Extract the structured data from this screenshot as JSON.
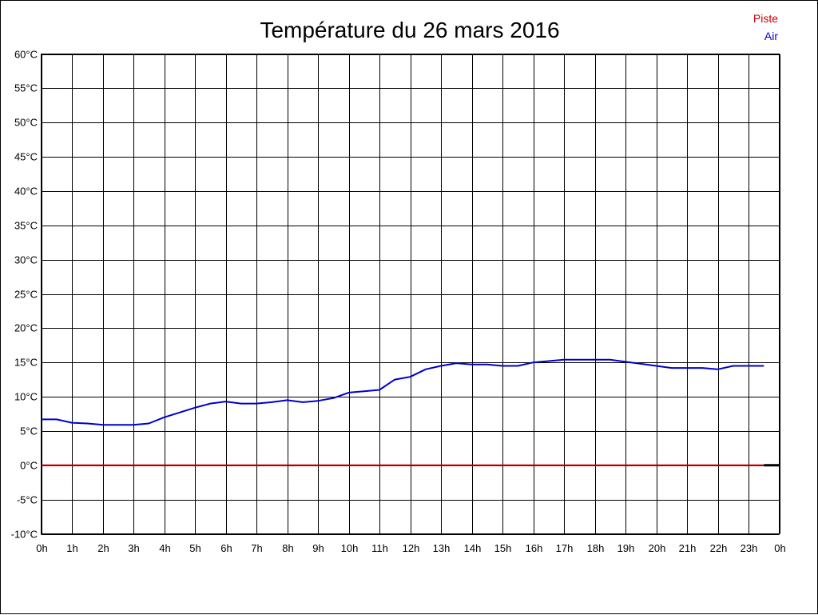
{
  "chart_data": {
    "type": "line",
    "title": "Température du 26 mars 2016",
    "xlabel": "",
    "ylabel": "",
    "xlim": [
      0,
      24
    ],
    "ylim": [
      -10,
      60
    ],
    "grid": true,
    "legend_position": "top-right",
    "y_ticks": [
      {
        "value": 60,
        "label": "60°C"
      },
      {
        "value": 55,
        "label": "55°C"
      },
      {
        "value": 50,
        "label": "50°C"
      },
      {
        "value": 45,
        "label": "45°C"
      },
      {
        "value": 40,
        "label": "40°C"
      },
      {
        "value": 35,
        "label": "35°C"
      },
      {
        "value": 30,
        "label": "30°C"
      },
      {
        "value": 25,
        "label": "25°C"
      },
      {
        "value": 20,
        "label": "20°C"
      },
      {
        "value": 15,
        "label": "15°C"
      },
      {
        "value": 10,
        "label": "10°C"
      },
      {
        "value": 5,
        "label": "5°C"
      },
      {
        "value": 0,
        "label": "0°C"
      },
      {
        "value": -5,
        "label": "-5°C"
      },
      {
        "value": -10,
        "label": "-10°C"
      }
    ],
    "x_ticks": [
      {
        "value": 0,
        "label": "0h"
      },
      {
        "value": 1,
        "label": "1h"
      },
      {
        "value": 2,
        "label": "2h"
      },
      {
        "value": 3,
        "label": "3h"
      },
      {
        "value": 4,
        "label": "4h"
      },
      {
        "value": 5,
        "label": "5h"
      },
      {
        "value": 6,
        "label": "6h"
      },
      {
        "value": 7,
        "label": "7h"
      },
      {
        "value": 8,
        "label": "8h"
      },
      {
        "value": 9,
        "label": "9h"
      },
      {
        "value": 10,
        "label": "10h"
      },
      {
        "value": 11,
        "label": "11h"
      },
      {
        "value": 12,
        "label": "12h"
      },
      {
        "value": 13,
        "label": "13h"
      },
      {
        "value": 14,
        "label": "14h"
      },
      {
        "value": 15,
        "label": "15h"
      },
      {
        "value": 16,
        "label": "16h"
      },
      {
        "value": 17,
        "label": "17h"
      },
      {
        "value": 18,
        "label": "18h"
      },
      {
        "value": 19,
        "label": "19h"
      },
      {
        "value": 20,
        "label": "20h"
      },
      {
        "value": 21,
        "label": "21h"
      },
      {
        "value": 22,
        "label": "22h"
      },
      {
        "value": 23,
        "label": "23h"
      },
      {
        "value": 24,
        "label": "0h"
      }
    ],
    "series": [
      {
        "name": "Piste",
        "color": "#cc0000",
        "x": [
          0,
          0.5,
          1,
          1.5,
          2,
          2.5,
          3,
          3.5,
          4,
          4.5,
          5,
          5.5,
          6,
          6.5,
          7,
          7.5,
          8,
          8.5,
          9,
          9.5,
          10,
          10.5,
          11,
          11.5,
          12,
          12.5,
          13,
          13.5,
          14,
          14.5,
          15,
          15.5,
          16,
          16.5,
          17,
          17.5,
          18,
          18.5,
          19,
          19.5,
          20,
          20.5,
          21,
          21.5,
          22,
          22.5,
          23,
          23.5
        ],
        "values": [
          0,
          0,
          0,
          0,
          0,
          0,
          0,
          0,
          0,
          0,
          0,
          0,
          0,
          0,
          0,
          0,
          0,
          0,
          0,
          0,
          0,
          0,
          0,
          0,
          0,
          0,
          0,
          0,
          0,
          0,
          0,
          0,
          0,
          0,
          0,
          0,
          0,
          0,
          0,
          0,
          0,
          0,
          0,
          0,
          0,
          0,
          0,
          0
        ]
      },
      {
        "name": "Air",
        "color": "#0000cc",
        "x": [
          0,
          0.5,
          1,
          1.5,
          2,
          2.5,
          3,
          3.5,
          4,
          4.5,
          5,
          5.5,
          6,
          6.5,
          7,
          7.5,
          8,
          8.5,
          9,
          9.5,
          10,
          10.5,
          11,
          11.5,
          12,
          12.5,
          13,
          13.5,
          14,
          14.5,
          15,
          15.5,
          16,
          16.5,
          17,
          17.5,
          18,
          18.5,
          19,
          19.5,
          20,
          20.5,
          21,
          21.5,
          22,
          22.5,
          23,
          23.5
        ],
        "values": [
          6.7,
          6.7,
          6.2,
          6.1,
          5.9,
          5.9,
          5.9,
          6.1,
          7.0,
          7.7,
          8.4,
          9.0,
          9.3,
          9.0,
          9.0,
          9.2,
          9.5,
          9.2,
          9.4,
          9.8,
          10.6,
          10.8,
          11.0,
          12.5,
          12.9,
          14.0,
          14.5,
          14.9,
          14.7,
          14.7,
          14.5,
          14.5,
          15.0,
          15.2,
          15.4,
          15.4,
          15.4,
          15.4,
          15.1,
          14.8,
          14.5,
          14.2,
          14.2,
          14.2,
          14.0,
          14.5,
          14.5,
          14.5
        ]
      }
    ]
  }
}
